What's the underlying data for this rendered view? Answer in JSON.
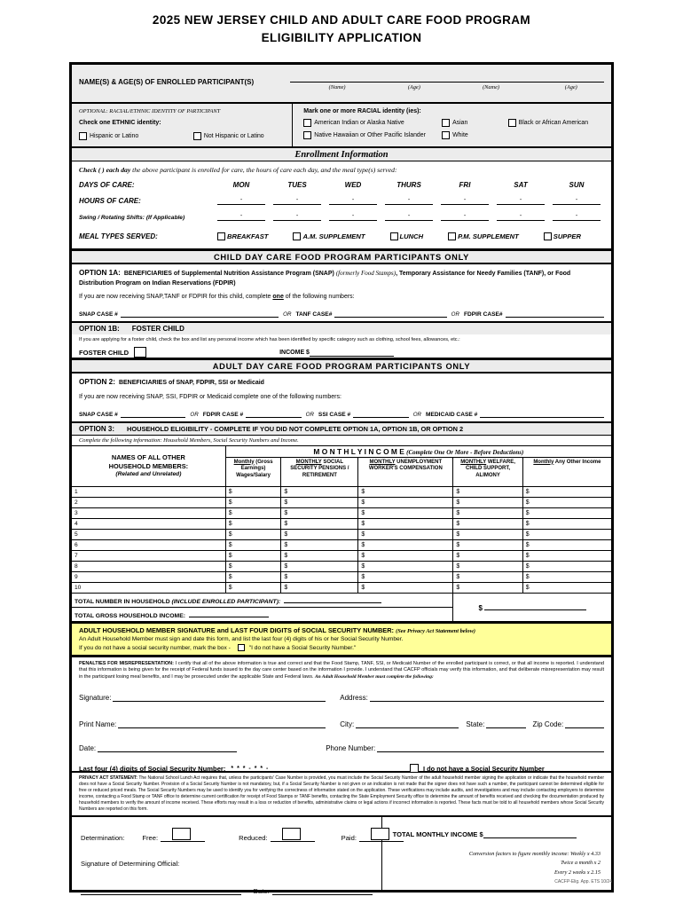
{
  "page": {
    "title_line1": "2025 NEW JERSEY CHILD AND ADULT CARE FOOD PROGRAM",
    "title_line2": "ELIGIBILITY APPLICATION",
    "footer": "CACFP-Elig. App. ETS 10/24"
  },
  "participants": {
    "label": "NAME(S) & AGE(S) OF ENROLLED PARTICIPANT(S)",
    "line_labels": [
      "(Name)",
      "(Age)",
      "(Name)",
      "(Age)"
    ]
  },
  "ethnicity": {
    "optional_label": "OPTIONAL:  RACIAL/ETHNIC IDENTITY OF PARTICIPANT",
    "check_label": "Check one ETHNIC identity:",
    "options": [
      "Hispanic or Latino",
      "Not Hispanic or Latino"
    ]
  },
  "race": {
    "label": "Mark one or more RACIAL identity (ies):",
    "options": [
      "American Indian or Alaska Native",
      "Asian",
      "Black or African American",
      "Native Hawaiian or Other Pacific Islander",
      "White"
    ]
  },
  "enrollment": {
    "header": "Enrollment Information",
    "instruction_bold": "Check (  ) each day",
    "instruction_rest": " the above participant is enrolled for care, the hours of care each day, and the meal type(s) served:",
    "days_label": "DAYS OF CARE:",
    "days": [
      "MON",
      "TUES",
      "WED",
      "THURS",
      "FRI",
      "SAT",
      "SUN"
    ],
    "hours_label": "HOURS OF CARE:",
    "shifts_label": "Swing / Rotating Shifts:  (If Applicable)",
    "dash": "-",
    "meals_label": "MEAL TYPES SERVED:",
    "meals": [
      "BREAKFAST",
      "A.M. SUPPLEMENT",
      "LUNCH",
      "P.M. SUPPLEMENT",
      "SUPPER"
    ]
  },
  "child_section": {
    "header": "CHILD DAY CARE FOOD PROGRAM PARTICIPANTS ONLY",
    "option1a_label": "OPTION 1A:",
    "option1a_bold1": "BENEFICIARIES of Supplemental Nutrition Assistance Program (SNAP) ",
    "option1a_italic": "(formerly Food Stamps)",
    "option1a_bold2": ", Temporary Assistance for Needy Families (TANF), or Food Distribution Program on Indian Reservations (FDPIR)",
    "option1a_instr_pre": "If you are now receiving SNAP,TANF or FDPIR for this child, complete ",
    "option1a_instr_one": "one",
    "option1a_instr_post": " of the following numbers:",
    "snap_label": "SNAP CASE #",
    "or": "OR",
    "tanf_label": "TANF CASE#",
    "fdpir_label": "FDPIR CASE#",
    "option1b_label": "OPTION 1B:",
    "option1b_title": "FOSTER CHILD",
    "option1b_text": "If you are applying for a foster child, check the box and list any personal income which has been identified by specific category such as clothing, school fees, allowances, etc.:",
    "foster_label": "FOSTER CHILD",
    "income_label": "INCOME $"
  },
  "adult_section": {
    "header": "ADULT DAY CARE FOOD PROGRAM PARTICIPANTS ONLY",
    "option2_label": "OPTION 2:",
    "option2_title": "BENEFICIARIES of SNAP, FDPIR, SSI or Medicaid",
    "option2_instr": "If you are now receiving SNAP, SSI, FDPIR or Medicaid complete one of the following numbers:",
    "snap_label": "SNAP CASE #",
    "fdpir_label": "FDPIR CASE #",
    "ssi_label": "SSI CASE #",
    "medicaid_label": "MEDICAID CASE #",
    "or": "OR"
  },
  "option3": {
    "label": "OPTION 3:",
    "title": "HOUSEHOLD ELIGIBILITY - COMPLETE IF YOU DID NOT COMPLETE OPTION 1A, OPTION 1B, OR OPTION 2",
    "instruction": "Complete the following information:  Household Members, Social Security Numbers and Income."
  },
  "income_table": {
    "names_line1": "NAMES OF ALL OTHER",
    "names_line2": "HOUSEHOLD MEMBERS:",
    "names_line3": "(Related and Unrelated)",
    "monthly_title": "M O N T H L Y   I N C O M E ",
    "monthly_subtitle": "(Complete One Or More - Before Deductions)",
    "columns": [
      {
        "u": "Monthly",
        "rest": " (Gross Earnings) Wages/Salary"
      },
      {
        "u": "MONTHLY",
        "rest": " SOCIAL SECURITY PENSIONS / RETIREMENT"
      },
      {
        "u": "MONTHLY",
        "rest": " UNEMPLOYMENT WORKER'S COMPENSATION"
      },
      {
        "u": "MONTHLY",
        "rest": " WELFARE, CHILD SUPPORT, ALIMONY"
      },
      {
        "u": "Monthly",
        "rest": " Any Other Income"
      }
    ],
    "row_numbers": [
      "1",
      "2",
      "3",
      "4",
      "5",
      "6",
      "7",
      "8",
      "9",
      "10"
    ],
    "dollar": "$",
    "total_household_bold": "TOTAL NUMBER IN HOUSEHOLD ",
    "total_household_italic": "(INCLUDE ENROLLED PARTICIPANT):",
    "total_income_label": "TOTAL GROSS HOUSEHOLD INCOME:",
    "total_dollar": "$"
  },
  "ssn_section": {
    "title_bold": "ADULT HOUSEHOLD MEMBER SIGNATURE and LAST FOUR DIGITS of SOCIAL SECURITY NUMBER: ",
    "title_italic": "(See Privacy Act Statement below)",
    "line2": "An Adult Household Member must sign and date this form, and list the last four (4) digits of his or her Social Security Number.",
    "line3_pre": "If you do not have a social security number, mark the box -",
    "line3_post": "\"I do not have a Social Security Number.\""
  },
  "certification": {
    "penalties_bold": "PENALTIES FOR MISREPRESENTATION:",
    "penalties_text": " I certify that all of the above information is true and correct and that the Food Stamp, TANF, SSI, or Medicaid Number of the enrolled participant is correct, or that all income is reported. I understand that this information is being given for the receipt of Federal funds issued to the day care center based on the information I provide. I understand that CACFP officials may verify this information, and that deliberate misrepresentation may result in the participant losing meal benefits, and I may be prosecuted under the applicable State and Federal laws. ",
    "penalties_italic": "An Adult Household Member must complete the following:",
    "signature_label": "Signature:",
    "address_label": "Address:",
    "print_name_label": "Print Name:",
    "city_label": "City:",
    "state_label": "State:",
    "zip_label": "Zip Code:",
    "date_label": "Date:",
    "phone_label": "Phone Number:",
    "ssn_last4_label": "Last four (4) digits of Social Security Number:",
    "ssn_mask": "* * *  -  * *  -",
    "no_ssn_label": "I do not have a Social Security Number"
  },
  "privacy": {
    "bold": "PRIVACY ACT STATEMENT:",
    "text": " The National School Lunch Act requires that, unless the participants' Case Number is provided, you must include the Social Security Number of the adult household member signing the application or indicate that the household member does not have a Social Security Number.  Provision of a Social Security Number is not mandatory, but, if a Social Security Number is not given or an indication is not made that the signer does not have such a number, the participant cannot be determined eligible for free or reduced priced meals.  The Social Security Numbers may be used to identify you for verifying the correctness of information stated on the application.  These verifications may include audits, and investigations and may include contacting employers to determine income, contacting a Food Stamp or TANF office to determine current certification for receipt of Food Stamps or TANF benefits, contacting the State Employment Security office to determine the amount of benefits received and checking the documentation produced by household members to verify the amount of income received.  These efforts may result in a loss or reduction of benefits, administrative claims or legal actions if incorrect information is reported.  These facts must be told to all household members whose Social Security Numbers are reported on this form."
  },
  "determination": {
    "label": "Determination:",
    "free_label": "Free:",
    "reduced_label": "Reduced:",
    "paid_label": "Paid:",
    "signature_label": "Signature of Determining Official:",
    "date_label": "Date:",
    "total_label": "TOTAL MONTHLY INCOME $",
    "conversion": [
      "Conversion factors to figure monthly income: Weekly x 4.33",
      "Twice a month x 2",
      "Every 2 weeks x 2.15"
    ]
  }
}
